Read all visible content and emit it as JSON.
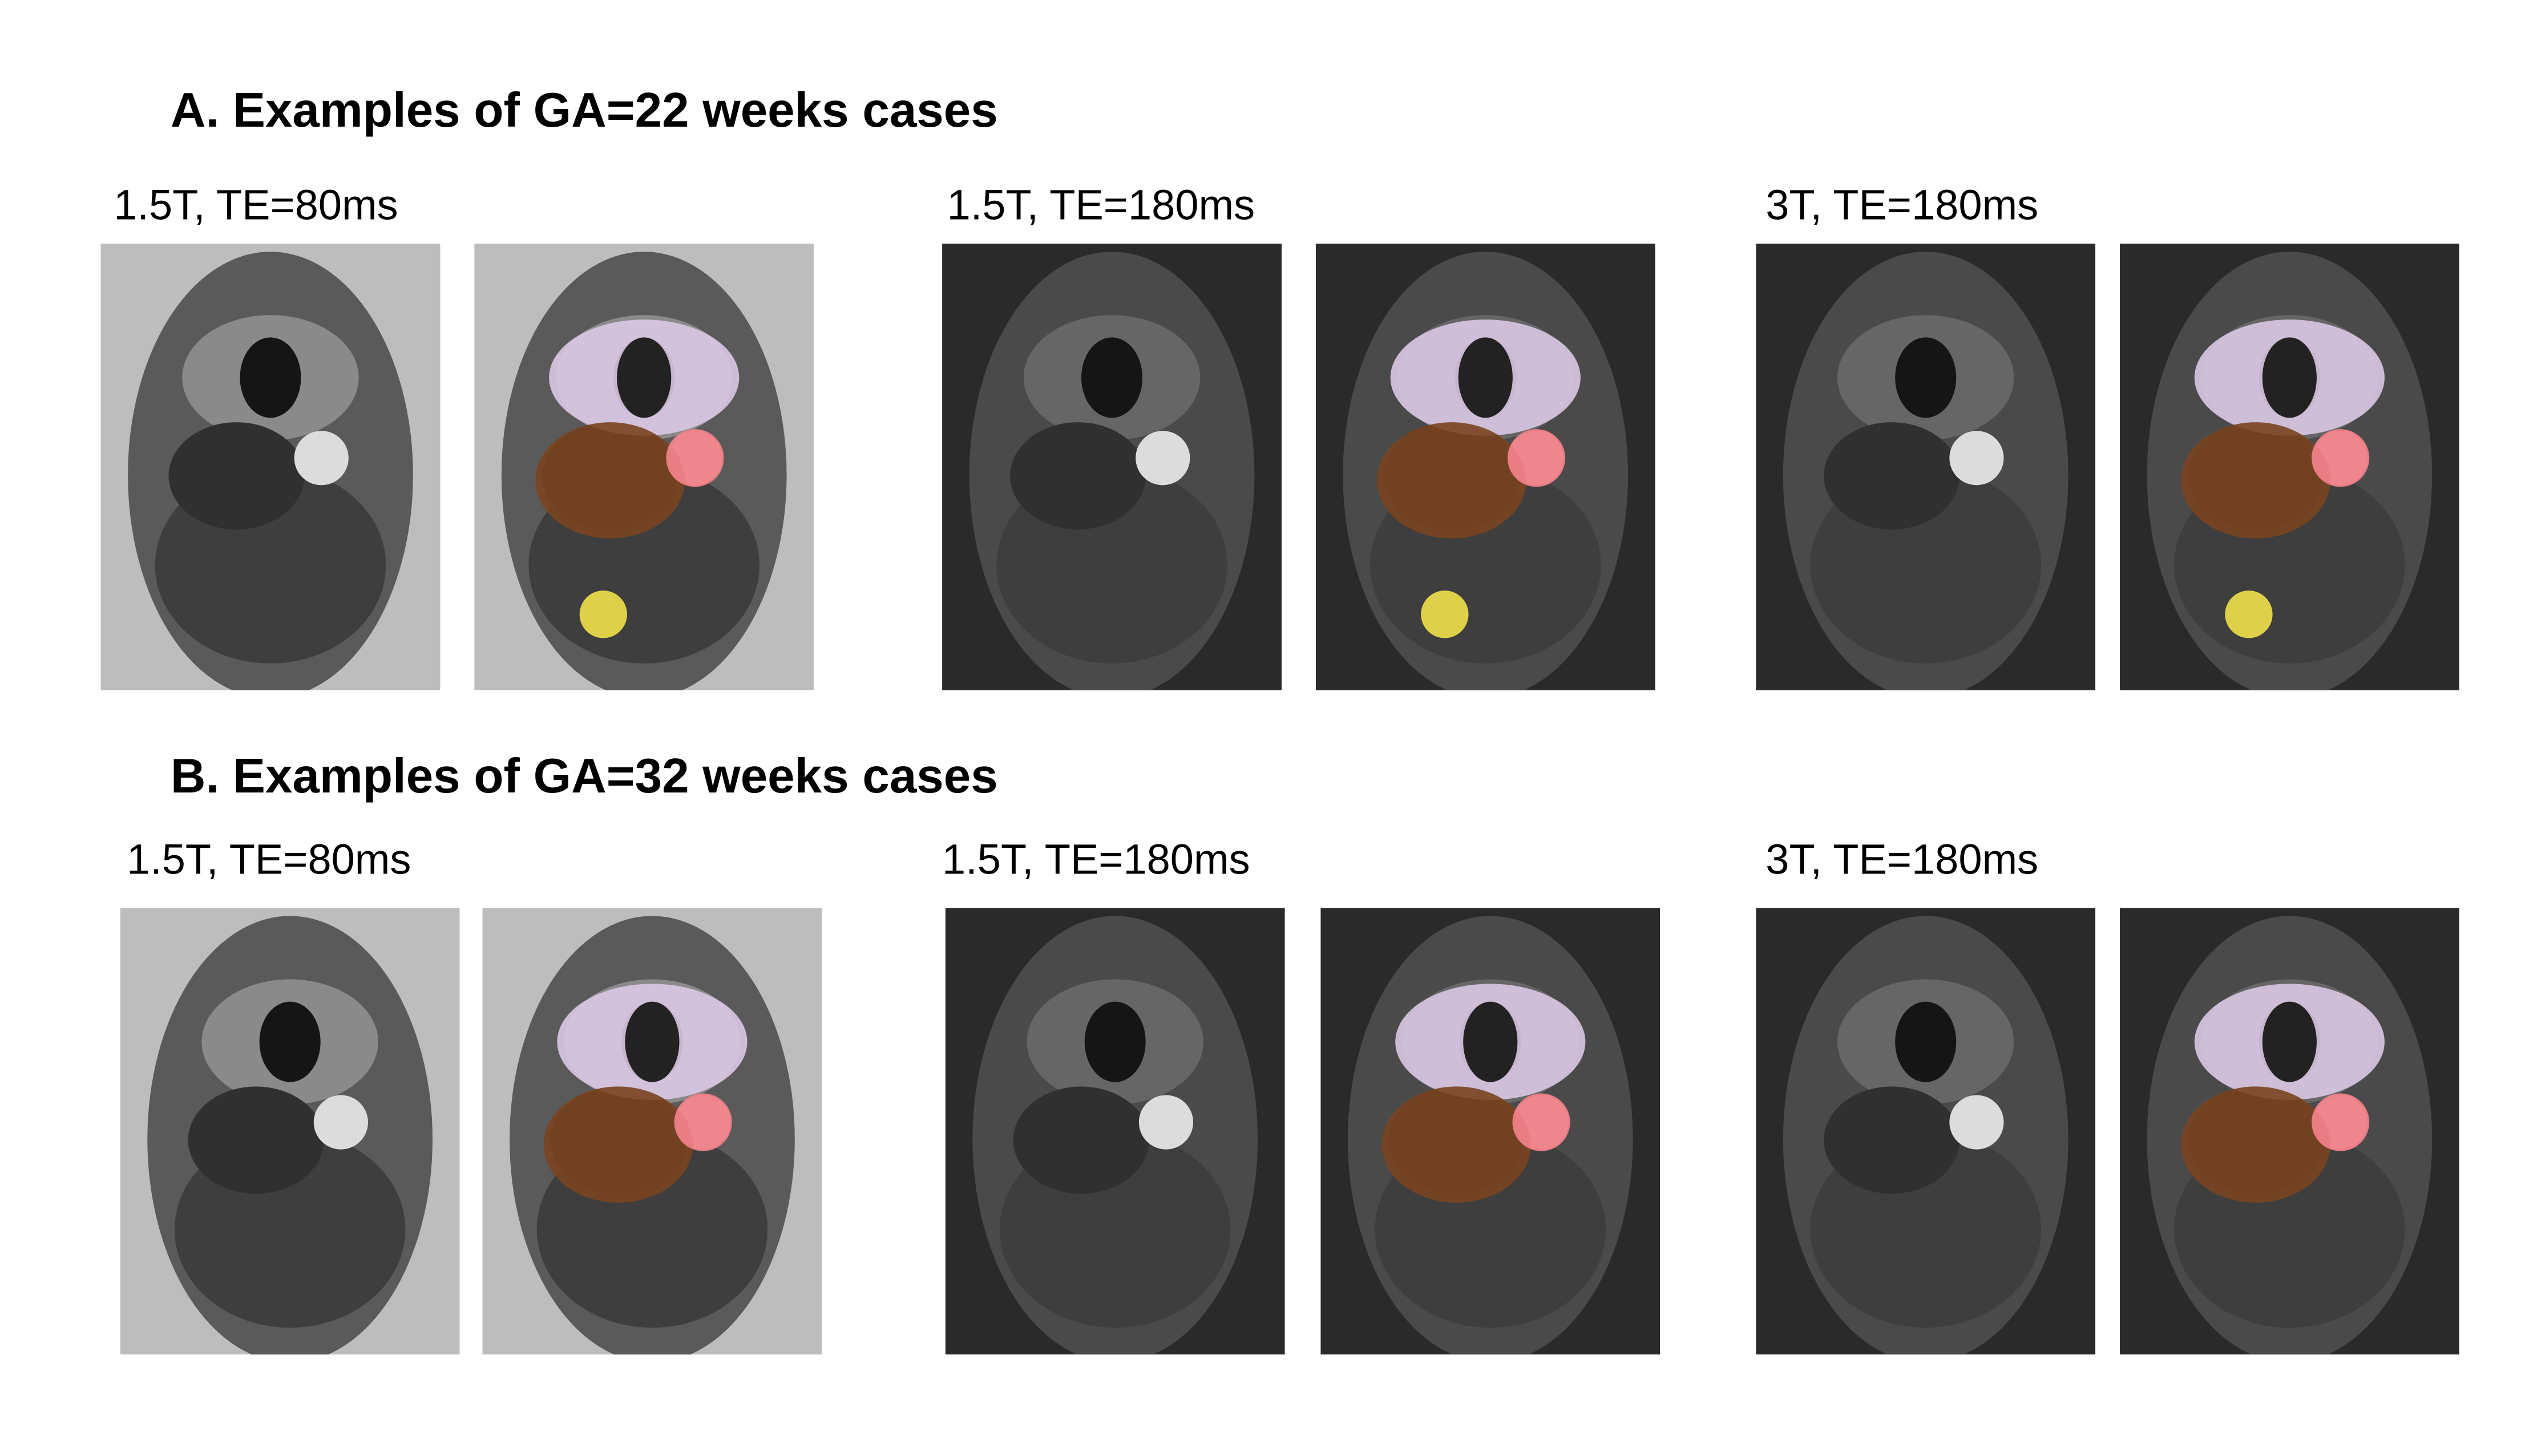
{
  "section_a": {
    "title": "A. Examples of GA=22 weeks cases",
    "panels": [
      "1.5T, TE=80ms",
      "1.5T, TE=180ms",
      "3T, TE=180ms"
    ]
  },
  "section_b": {
    "title": "B. Examples of GA=32 weeks cases",
    "panels": [
      "1.5T, TE=80ms",
      "1.5T, TE=180ms",
      "3T, TE=180ms"
    ]
  }
}
